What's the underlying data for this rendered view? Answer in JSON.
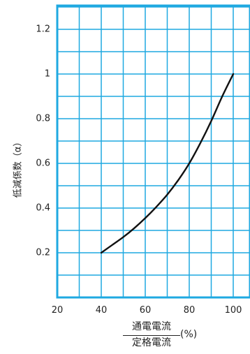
{
  "chart_data": {
    "type": "line",
    "x_axis": {
      "min": 20,
      "max": 100,
      "ticks": [
        "20",
        "40",
        "60",
        "80",
        "100"
      ],
      "label_numerator": "通電電流",
      "label_denominator": "定格電流",
      "label_unit": "(%)"
    },
    "y_axis": {
      "min": 0,
      "max": 1.3,
      "ticks": [
        "0.2",
        "0.4",
        "0.6",
        "0.8",
        "1",
        "1.2"
      ],
      "label": "低減係数（α）"
    },
    "grid": true,
    "series": [
      {
        "x": [
          40,
          45,
          50,
          55,
          60,
          65,
          70,
          75,
          80,
          85,
          90,
          95,
          100
        ],
        "y": [
          0.2,
          0.235,
          0.27,
          0.31,
          0.355,
          0.405,
          0.46,
          0.525,
          0.6,
          0.69,
          0.79,
          0.9,
          1.0
        ]
      }
    ],
    "colors": {
      "frame": "#1fa9e1",
      "grid": "#1fa9e1",
      "line": "#111111"
    }
  }
}
